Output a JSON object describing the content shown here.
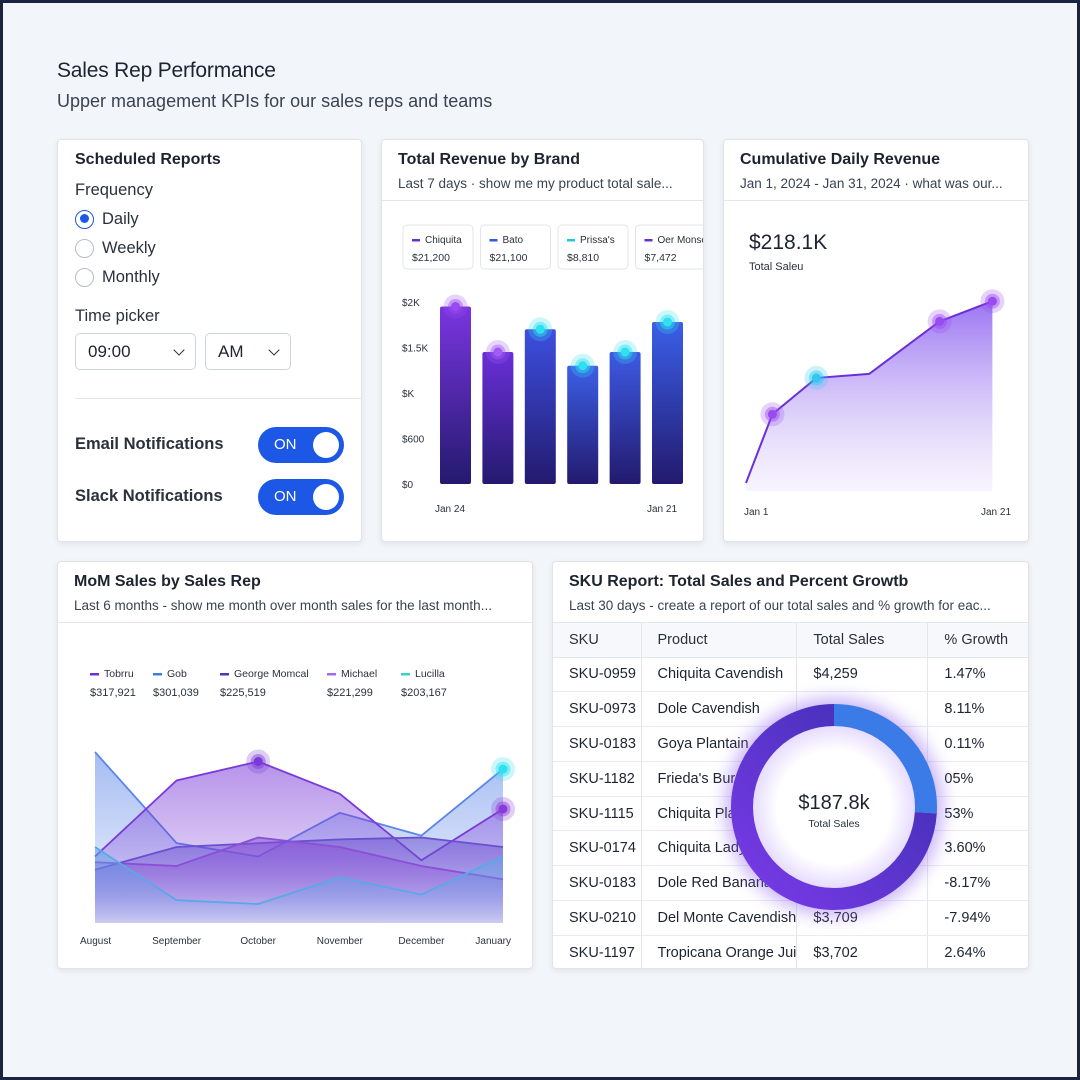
{
  "page": {
    "title": "Sales Rep Performance",
    "subtitle": "Upper management KPIs for our sales reps and teams"
  },
  "scheduled_reports": {
    "title": "Scheduled Reports",
    "frequency_label": "Frequency",
    "options": [
      {
        "label": "Daily",
        "selected": true
      },
      {
        "label": "Weekly",
        "selected": false
      },
      {
        "label": "Monthly",
        "selected": false
      }
    ],
    "time_picker_label": "Time picker",
    "time_value": "09:00",
    "ampm_value": "AM",
    "email_label": "Email Notifications",
    "email_toggle": "ON",
    "slack_label": "Slack Notifications",
    "slack_toggle": "ON"
  },
  "brand_card": {
    "title": "Total Revenue by Brand",
    "subtitle": "Last 7 days  ·  show me my product total sale..."
  },
  "cumulative_card": {
    "title": "Cumulative Daily Revenue",
    "subtitle": "Jan 1, 2024 - Jan 31, 2024  ·  what was our..."
  },
  "mom_card": {
    "title": "MoM Sales by Sales Rep",
    "subtitle": "Last 6 months - show me month over month sales for the last month..."
  },
  "sku_card": {
    "title": "SKU Report: Total Sales and Percent Growtb",
    "subtitle": "Last 30 days - create a report of our total sales and % growth for eac...",
    "columns": [
      "SKU",
      "Product",
      "Total Sales",
      "% Growth"
    ],
    "rows": [
      [
        "SKU-0959",
        "Chiquita Cavendish",
        "$4,259",
        "1.47%"
      ],
      [
        "SKU-0973",
        "Dole Cavendish",
        "",
        "8.11%"
      ],
      [
        "SKU-0183",
        "Goya Plantain",
        "",
        "0.11%"
      ],
      [
        "SKU-1182",
        "Frieda's Burro",
        "",
        "05%"
      ],
      [
        "SKU-1115",
        "Chiquita Plan",
        "",
        "53%"
      ],
      [
        "SKU-0174",
        "Chiquita Lady",
        "",
        "3.60%"
      ],
      [
        "SKU-0183",
        "Dole Red Banana",
        "",
        "-8.17%"
      ],
      [
        "SKU-0210",
        "Del Monte Cavendish",
        "$3,709",
        "-7.94%"
      ],
      [
        "SKU-1197",
        "Tropicana Orange Jui",
        "$3,702",
        "2.64%"
      ]
    ],
    "donut_value": "$187.8k",
    "donut_label": "Total Sales"
  },
  "colors": {
    "accent": "#1c57e6",
    "purple": "#6a2fd8",
    "cyan": "#1fd0e0",
    "navy": "#2a1f7a"
  },
  "chart_data": [
    {
      "type": "bar",
      "legend": [
        {
          "name": "Chiquita",
          "value": "$21,200",
          "color": "#6a2fd8"
        },
        {
          "name": "Bato",
          "value": "$21,100",
          "color": "#2f5be0"
        },
        {
          "name": "Prissa's",
          "value": "$8,810",
          "color": "#1fc8e0"
        },
        {
          "name": "Oer Monse",
          "value": "$7,472",
          "color": "#6a2fd8"
        }
      ],
      "y_ticks": [
        "$2K",
        "$1.5K",
        "$K",
        "$600",
        "$0"
      ],
      "x_labels": [
        "Jan 24",
        "Jan 21"
      ],
      "ylim": [
        0,
        2000
      ],
      "values": [
        1950,
        1450,
        1700,
        1300,
        1450,
        1780
      ],
      "bar_colors": [
        "#7a35e0",
        "#6a2fd8",
        "#3d4fe0",
        "#3b5fe6",
        "#3d5ae3",
        "#3a5fe8"
      ],
      "marker_colors": [
        "#9a4bf0",
        "#a15bf2",
        "#2ee0f0",
        "#2ee0f0",
        "#2ee0f0",
        "#2ee0f0"
      ]
    },
    {
      "type": "area",
      "total": "$218.1K",
      "total_label": "Total Saleu",
      "x_labels": [
        "Jan 1",
        "Jan 21"
      ],
      "x": [
        1,
        4,
        9,
        15,
        23,
        29
      ],
      "values": [
        10,
        95,
        140,
        145,
        210,
        235
      ],
      "ylim": [
        0,
        260
      ],
      "markers": [
        {
          "index": 1,
          "color": "#9a4bf0"
        },
        {
          "index": 2,
          "color": "#2ec8f0"
        },
        {
          "index": 4,
          "color": "#9a4bf0"
        },
        {
          "index": 5,
          "color": "#9a4bf0"
        }
      ]
    },
    {
      "type": "area",
      "categories": [
        "August",
        "September",
        "October",
        "November",
        "December",
        "January"
      ],
      "legend": [
        {
          "name": "Tobrru",
          "value": "$317,921",
          "color": "#6a2fd8"
        },
        {
          "name": "Gob",
          "value": "$301,039",
          "color": "#3d7be6"
        },
        {
          "name": "George Momcal",
          "value": "$225,519",
          "color": "#4a3ab8"
        },
        {
          "name": "Michael",
          "value": "$221,299",
          "color": "#a36cf0"
        },
        {
          "name": "Lucilla",
          "value": "$203,167",
          "color": "#3ed0c8"
        }
      ],
      "ylim": [
        0,
        100
      ],
      "series": [
        {
          "values": [
            90,
            42,
            35,
            58,
            46,
            81
          ],
          "color": "#5c86e8"
        },
        {
          "values": [
            35,
            75,
            85,
            68,
            33,
            60
          ],
          "color": "#7a3ad8"
        },
        {
          "values": [
            28,
            40,
            42,
            44,
            45,
            40
          ],
          "color": "#6a4fd0"
        },
        {
          "values": [
            32,
            30,
            45,
            40,
            30,
            23
          ],
          "color": "#8a4fd6"
        },
        {
          "values": [
            40,
            12,
            10,
            24,
            15,
            35
          ],
          "color": "#5aa8e8"
        }
      ],
      "markers": [
        {
          "category": 2,
          "value": 85,
          "color": "#7a3ad8"
        },
        {
          "category": 5,
          "value": 81,
          "color": "#2ee0f0"
        },
        {
          "category": 5,
          "value": 60,
          "color": "#8a3ad8"
        }
      ]
    },
    {
      "type": "pie",
      "total": "$187.8k",
      "label": "Total Sales",
      "segments": [
        {
          "name": "purple",
          "fraction": 0.74
        },
        {
          "name": "blue",
          "fraction": 0.26
        }
      ]
    }
  ]
}
